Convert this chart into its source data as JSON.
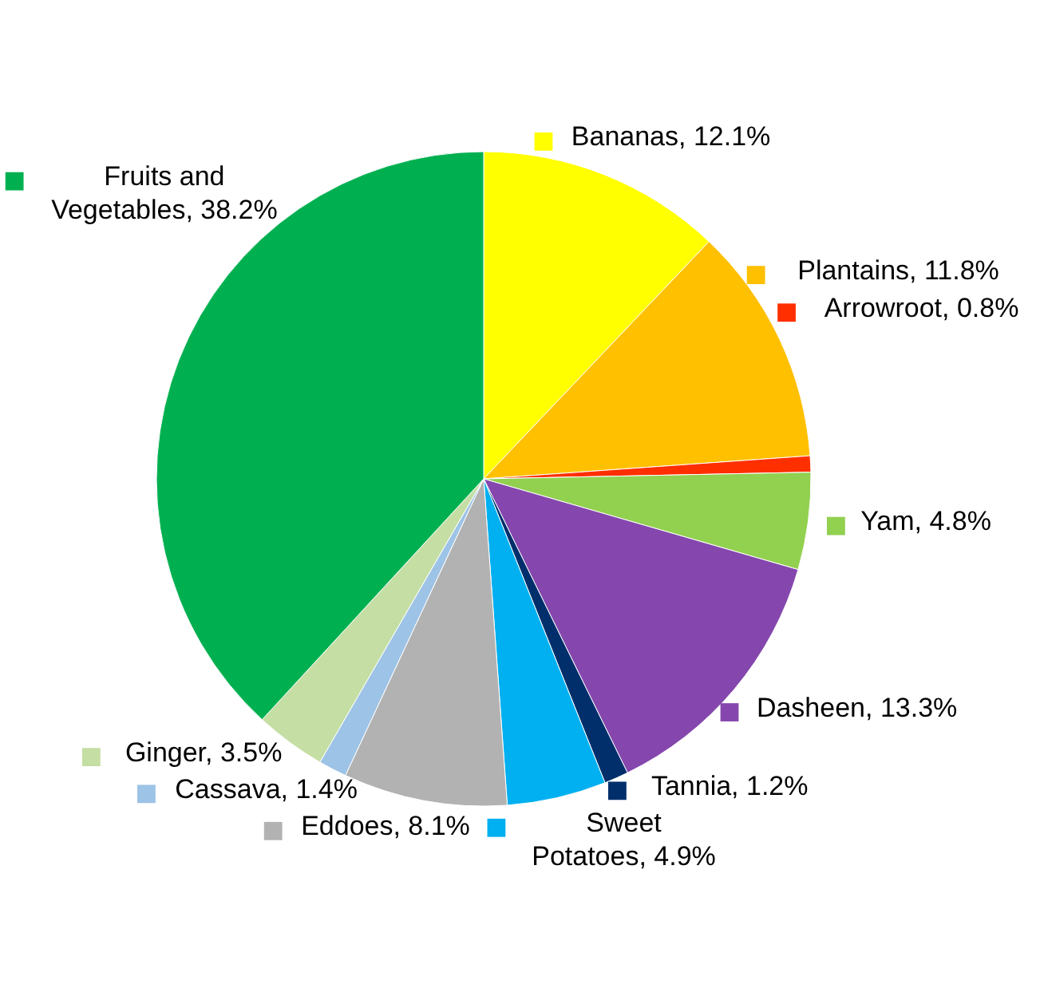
{
  "chart_data": {
    "type": "pie",
    "categories": [
      "Bananas",
      "Plantains",
      "Arrowroot",
      "Yam",
      "Dasheen",
      "Tannia",
      "Sweet Potatoes",
      "Eddoes",
      "Cassava",
      "Ginger",
      "Fruits and Vegetables"
    ],
    "values": [
      12.1,
      11.8,
      0.8,
      4.8,
      13.3,
      1.2,
      4.9,
      8.1,
      1.4,
      3.5,
      38.2
    ],
    "value_labels": [
      "12.1%",
      "11.8%",
      "0.8%",
      "4.8%",
      "13.3%",
      "1.2%",
      "4.9%",
      "8.1%",
      "1.4%",
      "3.5%",
      "38.2%"
    ],
    "legend": "bottom right",
    "colors": [
      "#ffff00",
      "#ffc000",
      "#ff2f00",
      "#92d050",
      "#8547ad",
      "#002f6c",
      "#00b0f0",
      "#b2b2b2",
      "#9dc3e6",
      "#c4dea4",
      "#00b050"
    ]
  }
}
